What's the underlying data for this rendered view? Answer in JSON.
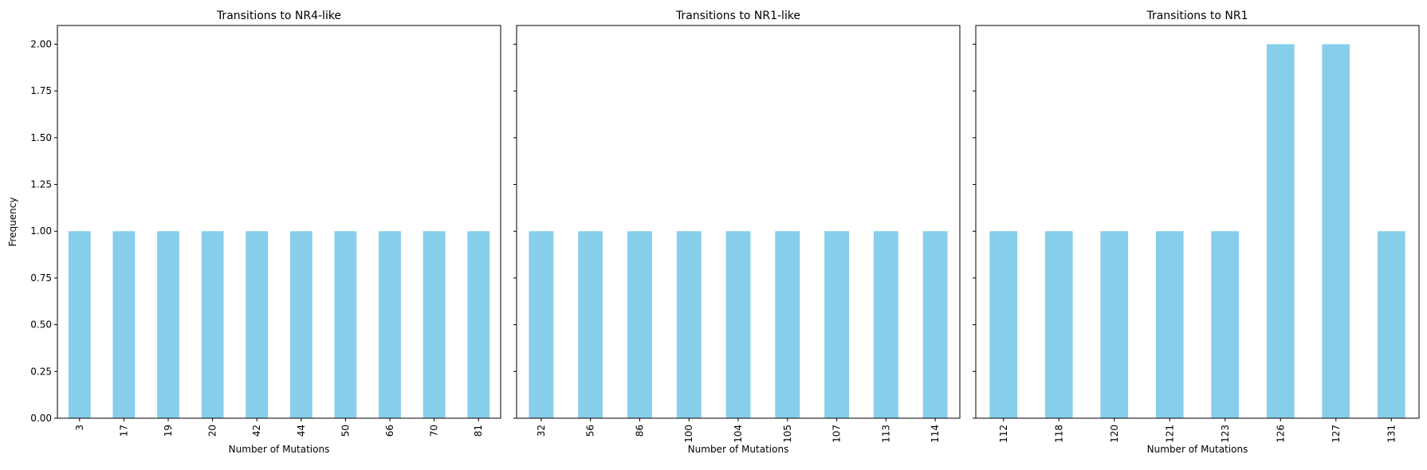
{
  "chart_data": [
    {
      "type": "bar",
      "title": "Transitions to NR4-like",
      "xlabel": "Number of Mutations",
      "ylabel": "Frequency",
      "categories": [
        "3",
        "17",
        "19",
        "20",
        "42",
        "44",
        "50",
        "66",
        "70",
        "81"
      ],
      "values": [
        1,
        1,
        1,
        1,
        1,
        1,
        1,
        1,
        1,
        1
      ],
      "ylim": [
        0,
        2.1
      ],
      "yticks": [
        "0.00",
        "0.25",
        "0.50",
        "0.75",
        "1.00",
        "1.25",
        "1.50",
        "1.75",
        "2.00"
      ],
      "grid": false
    },
    {
      "type": "bar",
      "title": "Transitions to NR1-like",
      "xlabel": "Number of Mutations",
      "ylabel": "",
      "categories": [
        "32",
        "56",
        "86",
        "100",
        "104",
        "105",
        "107",
        "113",
        "114"
      ],
      "values": [
        1,
        1,
        1,
        1,
        1,
        1,
        1,
        1,
        1
      ],
      "ylim": [
        0,
        2.1
      ],
      "grid": false
    },
    {
      "type": "bar",
      "title": "Transitions to NR1",
      "xlabel": "Number of Mutations",
      "ylabel": "",
      "categories": [
        "112",
        "118",
        "120",
        "121",
        "123",
        "126",
        "127",
        "131"
      ],
      "values": [
        1,
        1,
        1,
        1,
        1,
        2,
        2,
        1
      ],
      "ylim": [
        0,
        2.1
      ],
      "grid": false
    }
  ],
  "colors": {
    "bar": "#87ceeb",
    "axis": "#000000"
  },
  "shared_y": true
}
